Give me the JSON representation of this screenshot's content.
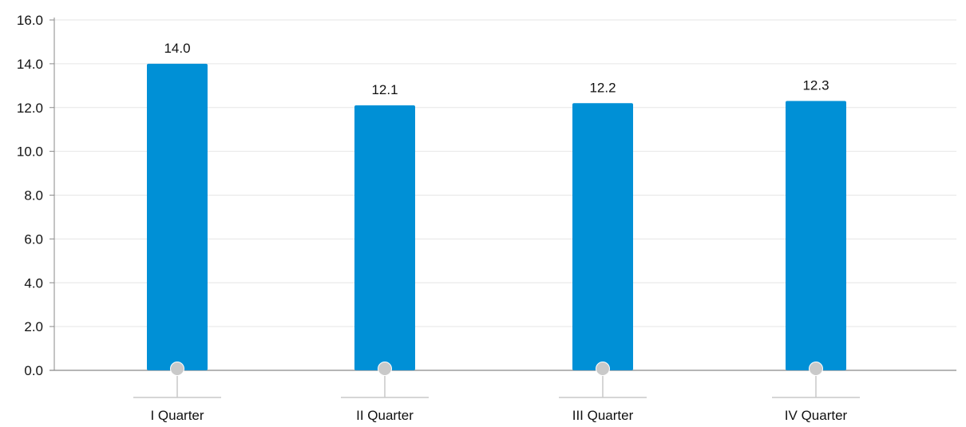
{
  "colors": {
    "bar": "#0090d6",
    "grid": "#e6e6e6",
    "axis": "#8a8a8a",
    "marker": "#c9c9c9",
    "text": "#111111"
  },
  "chart_data": {
    "type": "bar",
    "categories": [
      "I Quarter",
      "II Quarter",
      "III Quarter",
      "IV Quarter"
    ],
    "values": [
      14.0,
      12.1,
      12.2,
      12.3
    ],
    "data_labels": [
      "14.0",
      "12.1",
      "12.2",
      "12.3"
    ],
    "y_ticks": [
      "0.0",
      "2.0",
      "4.0",
      "6.0",
      "8.0",
      "10.0",
      "12.0",
      "14.0",
      "16.0"
    ],
    "ylim": [
      0,
      16
    ],
    "grid": true,
    "legend": "none",
    "title": "",
    "xlabel": "",
    "ylabel": ""
  }
}
